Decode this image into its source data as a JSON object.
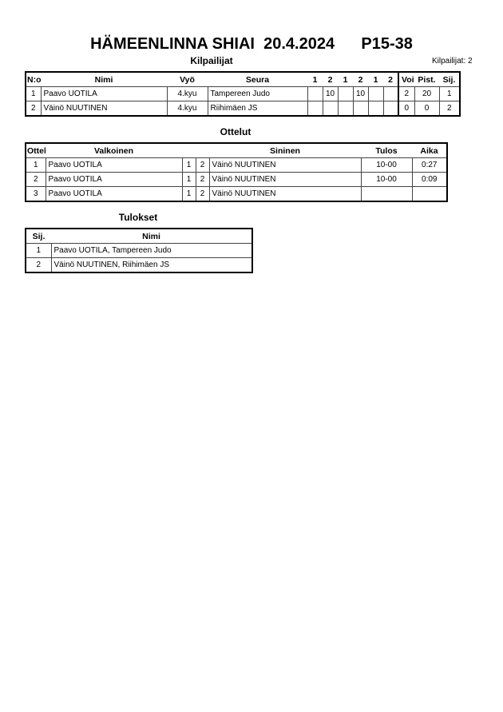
{
  "header": {
    "title": "HÄMEENLINNA SHIAI  20.4.2024      P15-38",
    "competitors_count": "Kilpailijat: 2"
  },
  "competitors": {
    "title": "Kilpailijat",
    "columns": [
      "N:o",
      "Nimi",
      "Vyö",
      "Seura",
      "1",
      "2",
      "1",
      "2",
      "1",
      "2",
      "Voit.",
      "Pist.",
      "Sij."
    ],
    "rows": [
      [
        "1",
        "Paavo UOTILA",
        "4.kyu",
        "Tampereen Judo",
        "",
        "10",
        "",
        "10",
        "",
        "",
        "2",
        "20",
        "1"
      ],
      [
        "2",
        "Väinö NUUTINEN",
        "4.kyu",
        "Riihimäen JS",
        "",
        "",
        "",
        "",
        "",
        "",
        "0",
        "0",
        "2"
      ]
    ]
  },
  "matches": {
    "title": "Ottelut",
    "columns": [
      "Ottelu",
      "Valkoinen",
      "",
      "",
      "Sininen",
      "Tulos",
      "Aika"
    ],
    "rows": [
      [
        "1",
        "Paavo UOTILA",
        "1",
        "2",
        "Väinö NUUTINEN",
        "10-00",
        "0:27"
      ],
      [
        "2",
        "Paavo UOTILA",
        "1",
        "2",
        "Väinö NUUTINEN",
        "10-00",
        "0:09"
      ],
      [
        "3",
        "Paavo UOTILA",
        "1",
        "2",
        "Väinö NUUTINEN",
        "",
        ""
      ]
    ]
  },
  "results": {
    "title": "Tulokset",
    "columns": [
      "Sij.",
      "Nimi"
    ],
    "rows": [
      [
        "1",
        "Paavo UOTILA, Tampereen Judo"
      ],
      [
        "2",
        "Väinö NUUTINEN, Riihimäen JS"
      ]
    ]
  }
}
